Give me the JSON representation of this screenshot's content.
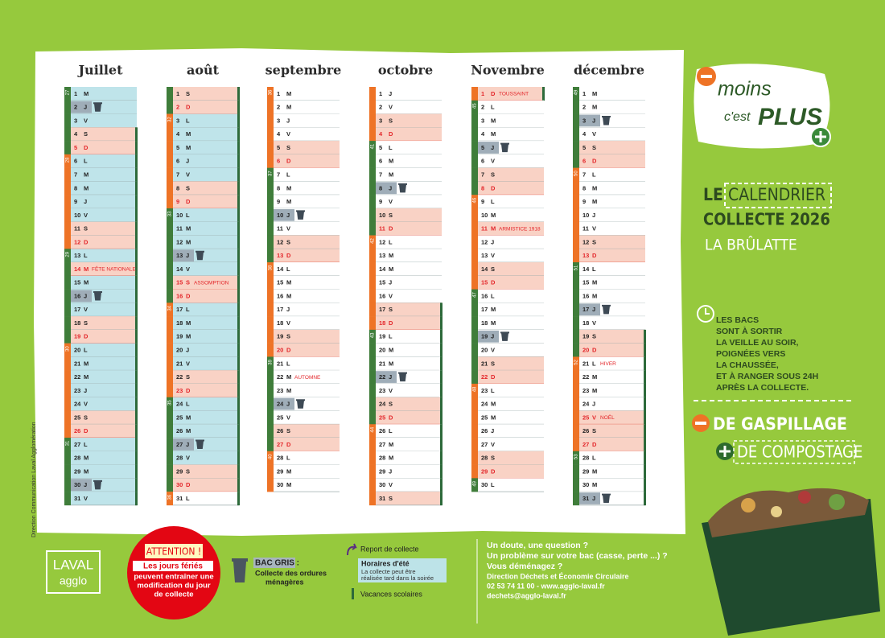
{
  "calendar": {
    "months": [
      {
        "name": "Juillet",
        "days": [
          [
            1,
            "M"
          ],
          [
            2,
            "J"
          ],
          [
            3,
            "V"
          ],
          [
            4,
            "S"
          ],
          [
            5,
            "D"
          ],
          [
            6,
            "L"
          ],
          [
            7,
            "M"
          ],
          [
            8,
            "M"
          ],
          [
            9,
            "J"
          ],
          [
            10,
            "V"
          ],
          [
            11,
            "S"
          ],
          [
            12,
            "D"
          ],
          [
            13,
            "L"
          ],
          [
            14,
            "M"
          ],
          [
            15,
            "M"
          ],
          [
            16,
            "J"
          ],
          [
            17,
            "V"
          ],
          [
            18,
            "S"
          ],
          [
            19,
            "D"
          ],
          [
            20,
            "L"
          ],
          [
            21,
            "M"
          ],
          [
            22,
            "M"
          ],
          [
            23,
            "J"
          ],
          [
            24,
            "V"
          ],
          [
            25,
            "S"
          ],
          [
            26,
            "D"
          ],
          [
            27,
            "L"
          ],
          [
            28,
            "M"
          ],
          [
            29,
            "M"
          ],
          [
            30,
            "J"
          ],
          [
            31,
            "V"
          ]
        ],
        "weeks": [
          [
            1,
            27
          ],
          [
            6,
            28
          ],
          [
            13,
            29
          ],
          [
            20,
            30
          ],
          [
            27,
            31
          ]
        ],
        "collecte": [
          2,
          16,
          30
        ],
        "feries": [
          14
        ],
        "notes": [
          [
            14,
            "FÊTE NATIONALE"
          ]
        ],
        "vacances": [
          [
            4,
            31
          ]
        ],
        "ete": [
          [
            1,
            31
          ]
        ]
      },
      {
        "name": "août",
        "days": [
          [
            1,
            "S"
          ],
          [
            2,
            "D"
          ],
          [
            3,
            "L"
          ],
          [
            4,
            "M"
          ],
          [
            5,
            "M"
          ],
          [
            6,
            "J"
          ],
          [
            7,
            "V"
          ],
          [
            8,
            "S"
          ],
          [
            9,
            "D"
          ],
          [
            10,
            "L"
          ],
          [
            11,
            "M"
          ],
          [
            12,
            "M"
          ],
          [
            13,
            "J"
          ],
          [
            14,
            "V"
          ],
          [
            15,
            "S"
          ],
          [
            16,
            "D"
          ],
          [
            17,
            "L"
          ],
          [
            18,
            "M"
          ],
          [
            19,
            "M"
          ],
          [
            20,
            "J"
          ],
          [
            21,
            "V"
          ],
          [
            22,
            "S"
          ],
          [
            23,
            "D"
          ],
          [
            24,
            "L"
          ],
          [
            25,
            "M"
          ],
          [
            26,
            "M"
          ],
          [
            27,
            "J"
          ],
          [
            28,
            "V"
          ],
          [
            29,
            "S"
          ],
          [
            30,
            "D"
          ],
          [
            31,
            "L"
          ]
        ],
        "weeks": [
          [
            3,
            32
          ],
          [
            10,
            33
          ],
          [
            17,
            34
          ],
          [
            24,
            35
          ],
          [
            31,
            36
          ]
        ],
        "collecte": [
          13,
          27
        ],
        "feries": [
          15
        ],
        "notes": [
          [
            15,
            "ASSOMPTION"
          ]
        ],
        "vacances": [
          [
            1,
            31
          ]
        ],
        "ete": [
          [
            1,
            30
          ]
        ]
      },
      {
        "name": "septembre",
        "days": [
          [
            1,
            "M"
          ],
          [
            2,
            "M"
          ],
          [
            3,
            "J"
          ],
          [
            4,
            "V"
          ],
          [
            5,
            "S"
          ],
          [
            6,
            "D"
          ],
          [
            7,
            "L"
          ],
          [
            8,
            "M"
          ],
          [
            9,
            "M"
          ],
          [
            10,
            "J"
          ],
          [
            11,
            "V"
          ],
          [
            12,
            "S"
          ],
          [
            13,
            "D"
          ],
          [
            14,
            "L"
          ],
          [
            15,
            "M"
          ],
          [
            16,
            "M"
          ],
          [
            17,
            "J"
          ],
          [
            18,
            "V"
          ],
          [
            19,
            "S"
          ],
          [
            20,
            "D"
          ],
          [
            21,
            "L"
          ],
          [
            22,
            "M"
          ],
          [
            23,
            "M"
          ],
          [
            24,
            "J"
          ],
          [
            25,
            "V"
          ],
          [
            26,
            "S"
          ],
          [
            27,
            "D"
          ],
          [
            28,
            "L"
          ],
          [
            29,
            "M"
          ],
          [
            30,
            "M"
          ]
        ],
        "weeks": [
          [
            1,
            36
          ],
          [
            7,
            37
          ],
          [
            14,
            38
          ],
          [
            21,
            39
          ],
          [
            28,
            40
          ]
        ],
        "collecte": [
          10,
          24
        ],
        "feries": [],
        "notes": [
          [
            22,
            "AUTOMNE"
          ]
        ],
        "vacances": [],
        "ete": []
      },
      {
        "name": "octobre",
        "days": [
          [
            1,
            "J"
          ],
          [
            2,
            "V"
          ],
          [
            3,
            "S"
          ],
          [
            4,
            "D"
          ],
          [
            5,
            "L"
          ],
          [
            6,
            "M"
          ],
          [
            7,
            "M"
          ],
          [
            8,
            "J"
          ],
          [
            9,
            "V"
          ],
          [
            10,
            "S"
          ],
          [
            11,
            "D"
          ],
          [
            12,
            "L"
          ],
          [
            13,
            "M"
          ],
          [
            14,
            "M"
          ],
          [
            15,
            "J"
          ],
          [
            16,
            "V"
          ],
          [
            17,
            "S"
          ],
          [
            18,
            "D"
          ],
          [
            19,
            "L"
          ],
          [
            20,
            "M"
          ],
          [
            21,
            "M"
          ],
          [
            22,
            "J"
          ],
          [
            23,
            "V"
          ],
          [
            24,
            "S"
          ],
          [
            25,
            "D"
          ],
          [
            26,
            "L"
          ],
          [
            27,
            "M"
          ],
          [
            28,
            "M"
          ],
          [
            29,
            "J"
          ],
          [
            30,
            "V"
          ],
          [
            31,
            "S"
          ]
        ],
        "weeks": [
          [
            5,
            41
          ],
          [
            12,
            42
          ],
          [
            19,
            43
          ],
          [
            26,
            44
          ]
        ],
        "collecte": [
          8,
          22
        ],
        "feries": [],
        "notes": [],
        "vacances": [
          [
            17,
            31
          ]
        ],
        "ete": []
      },
      {
        "name": "Novembre",
        "days": [
          [
            1,
            "D"
          ],
          [
            2,
            "L"
          ],
          [
            3,
            "M"
          ],
          [
            4,
            "M"
          ],
          [
            5,
            "J"
          ],
          [
            6,
            "V"
          ],
          [
            7,
            "S"
          ],
          [
            8,
            "D"
          ],
          [
            9,
            "L"
          ],
          [
            10,
            "M"
          ],
          [
            11,
            "M"
          ],
          [
            12,
            "J"
          ],
          [
            13,
            "V"
          ],
          [
            14,
            "S"
          ],
          [
            15,
            "D"
          ],
          [
            16,
            "L"
          ],
          [
            17,
            "M"
          ],
          [
            18,
            "M"
          ],
          [
            19,
            "J"
          ],
          [
            20,
            "V"
          ],
          [
            21,
            "S"
          ],
          [
            22,
            "D"
          ],
          [
            23,
            "L"
          ],
          [
            24,
            "M"
          ],
          [
            25,
            "M"
          ],
          [
            26,
            "J"
          ],
          [
            27,
            "V"
          ],
          [
            28,
            "S"
          ],
          [
            29,
            "D"
          ],
          [
            30,
            "L"
          ]
        ],
        "weeks": [
          [
            2,
            45
          ],
          [
            9,
            46
          ],
          [
            16,
            47
          ],
          [
            23,
            48
          ],
          [
            30,
            49
          ]
        ],
        "collecte": [
          5,
          19
        ],
        "feries": [
          1,
          11
        ],
        "notes": [
          [
            1,
            "TOUSSAINT"
          ],
          [
            11,
            "ARMISTICE 1918"
          ]
        ],
        "vacances": [
          [
            1,
            1
          ]
        ],
        "ete": []
      },
      {
        "name": "décembre",
        "days": [
          [
            1,
            "M"
          ],
          [
            2,
            "M"
          ],
          [
            3,
            "J"
          ],
          [
            4,
            "V"
          ],
          [
            5,
            "S"
          ],
          [
            6,
            "D"
          ],
          [
            7,
            "L"
          ],
          [
            8,
            "M"
          ],
          [
            9,
            "M"
          ],
          [
            10,
            "J"
          ],
          [
            11,
            "V"
          ],
          [
            12,
            "S"
          ],
          [
            13,
            "D"
          ],
          [
            14,
            "L"
          ],
          [
            15,
            "M"
          ],
          [
            16,
            "M"
          ],
          [
            17,
            "J"
          ],
          [
            18,
            "V"
          ],
          [
            19,
            "S"
          ],
          [
            20,
            "D"
          ],
          [
            21,
            "L"
          ],
          [
            22,
            "M"
          ],
          [
            23,
            "M"
          ],
          [
            24,
            "J"
          ],
          [
            25,
            "V"
          ],
          [
            26,
            "S"
          ],
          [
            27,
            "D"
          ],
          [
            28,
            "L"
          ],
          [
            29,
            "M"
          ],
          [
            30,
            "M"
          ],
          [
            31,
            "J"
          ]
        ],
        "weeks": [
          [
            1,
            49
          ],
          [
            7,
            50
          ],
          [
            14,
            51
          ],
          [
            21,
            52
          ],
          [
            28,
            53
          ]
        ],
        "collecte": [
          3,
          17,
          31
        ],
        "feries": [
          25
        ],
        "notes": [
          [
            21,
            "HIVER"
          ],
          [
            25,
            "NOËL"
          ]
        ],
        "vacances": [
          [
            19,
            31
          ]
        ],
        "ete": []
      }
    ]
  },
  "slogan": {
    "moins": "moins",
    "cest": "c'est",
    "plus": "PLUS"
  },
  "title": {
    "le": "LE",
    "calendrier": "CALENDRIER",
    "collecte": "COLLECTE 2026",
    "commune": "LA BRÛLATTE"
  },
  "info": [
    "LES BACS",
    "SONT À SORTIR",
    "LA VEILLE AU SOIR,",
    "POIGNÉES VERS",
    "LA CHAUSSÉE,",
    "ET À RANGER SOUS 24H",
    "APRÈS LA COLLECTE."
  ],
  "motto": {
    "gaspillage": "DE GASPILLAGE",
    "compostage": "DE COMPOSTAGE"
  },
  "side": "Direction Communication Laval Agglomération",
  "logo": {
    "top": "LAVAL",
    "bottom": "agglo"
  },
  "attention": {
    "title": "ATTENTION !",
    "strong": "Les jours fériés",
    "lines": [
      "peuvent entraîner une",
      "modification du jour",
      "de collecte"
    ]
  },
  "legend": {
    "bac": "BAC GRIS :",
    "bac_lines": [
      "Collecte des ordures",
      "ménagères"
    ],
    "report": "Report de collecte",
    "ete": "Horaires d'été",
    "ete_lines": [
      "La collecte peut être",
      "réalisée tard dans la soirée"
    ],
    "vacances": "Vacances scolaires"
  },
  "contact": {
    "questions": [
      "Un doute, une question ?",
      "Un problème sur votre bac (casse, perte ...) ?",
      "Vous déménagez ?"
    ],
    "lines": [
      "Direction Déchets et Économie Circulaire",
      "02 53 74 11 00 - www.agglo-laval.fr",
      "dechets@agglo-laval.fr"
    ]
  }
}
